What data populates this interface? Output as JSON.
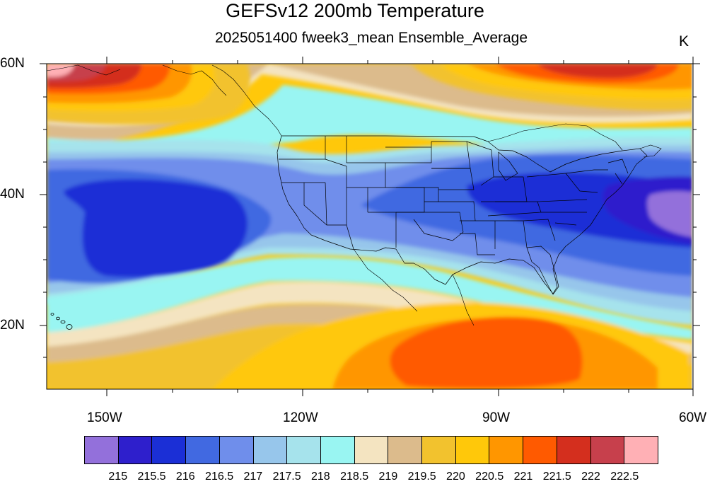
{
  "title": "GEFSv12 200mb Temperature",
  "subtitle": "2025051400 fweek3_mean Ensemble_Average",
  "units": "K",
  "map": {
    "projection": "cylindrical-equidistant",
    "lon_range": [
      -160,
      -60
    ],
    "lat_range": [
      10,
      60
    ],
    "lat_tick_labels": [
      "60N",
      "40N",
      "20N"
    ],
    "lon_tick_labels": [
      "150W",
      "120W",
      "90W",
      "60W"
    ],
    "field": "200mb temperature (shaded contours)",
    "features": [
      "US state boundaries",
      "coastlines",
      "Hawaii",
      "Alaska panhandle"
    ]
  },
  "colorbar": {
    "labels": [
      "215",
      "215.5",
      "216",
      "216.5",
      "217",
      "217.5",
      "218",
      "218.5",
      "219",
      "219.5",
      "220",
      "220.5",
      "221",
      "221.5",
      "222",
      "222.5"
    ],
    "colors": [
      "#9370DB",
      "#2E1FCC",
      "#1B2FD6",
      "#4169E1",
      "#6F8EEB",
      "#97C6EB",
      "#A6E3EC",
      "#99F5F2",
      "#F4E4C1",
      "#DCBB8C",
      "#F2C22E",
      "#FFC80A",
      "#FF9600",
      "#FF5A00",
      "#D42F1E",
      "#C7404C",
      "#FFB0B5"
    ]
  }
}
